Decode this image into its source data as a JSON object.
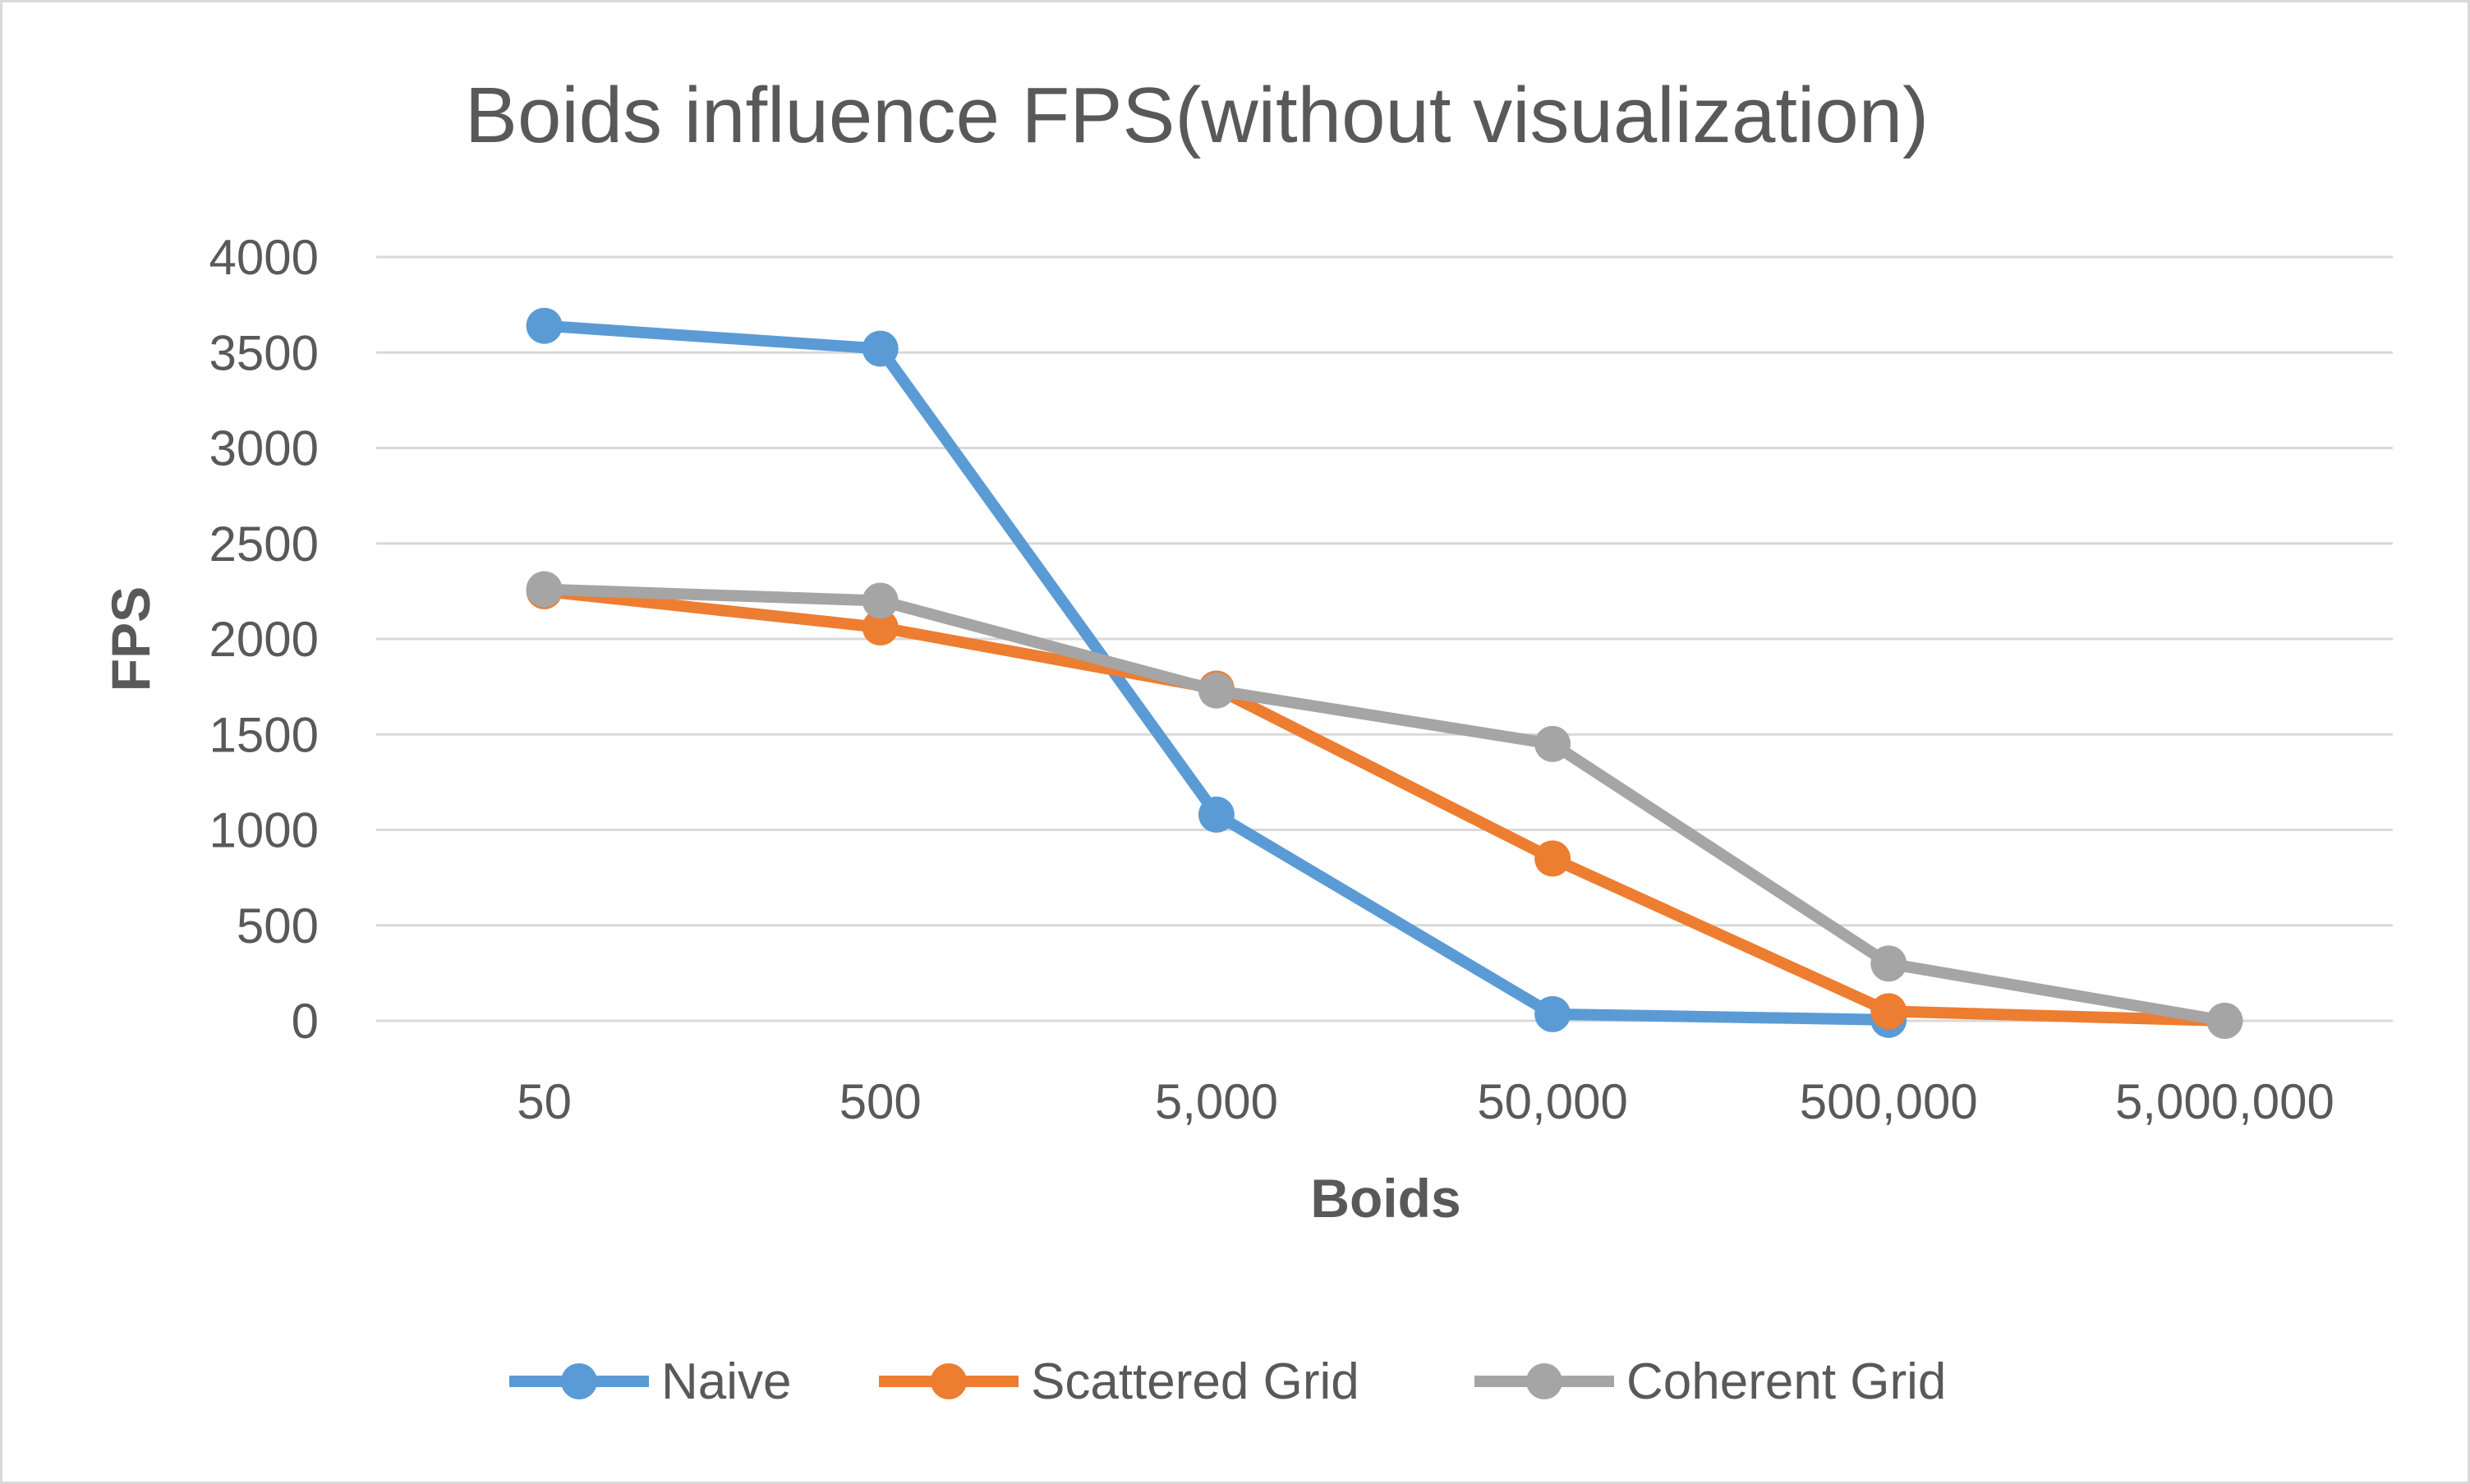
{
  "chart_data": {
    "type": "line",
    "title": "Boids influence FPS(without visualization)",
    "xlabel": "Boids",
    "ylabel": "FPS",
    "categories": [
      "50",
      "500",
      "5,000",
      "50,000",
      "500,000",
      "5,000,000"
    ],
    "ylim": [
      0,
      4000
    ],
    "yticks": [
      0,
      500,
      1000,
      1500,
      2000,
      2500,
      3000,
      3500,
      4000
    ],
    "grid": true,
    "legend": "bottom",
    "series": [
      {
        "name": "Naive",
        "color": "#5b9bd5",
        "values": [
          3640,
          3520,
          1080,
          35,
          5,
          null
        ]
      },
      {
        "name": "Scattered Grid",
        "color": "#ed7d31",
        "values": [
          2250,
          2060,
          1740,
          850,
          50,
          0
        ]
      },
      {
        "name": "Coherent Grid",
        "color": "#a5a5a5",
        "values": [
          2260,
          2200,
          1730,
          1450,
          300,
          0
        ]
      }
    ]
  }
}
